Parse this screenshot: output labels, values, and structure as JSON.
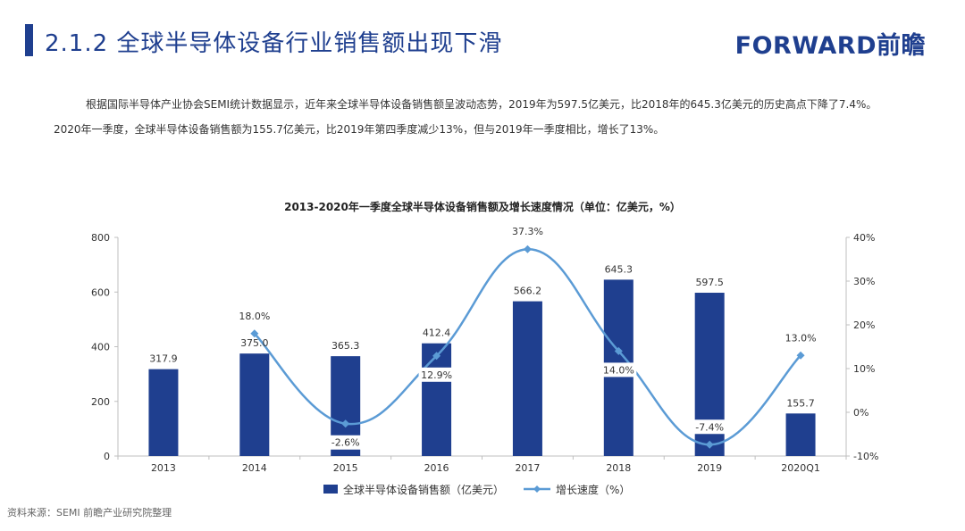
{
  "header": {
    "title": "2.1.2  全球半导体设备行业销售额出现下滑",
    "logo": "FORWARD前瞻"
  },
  "intro": "根据国际半导体产业协会SEMI统计数据显示，近年来全球半导体设备销售额呈波动态势，2019年为597.5亿美元，比2018年的645.3亿美元的历史高点下降了7.4%。2020年一季度，全球半导体设备销售额为155.7亿美元，比2019年第四季度减少13%，但与2019年一季度相比，增长了13%。",
  "chart_data": {
    "type": "bar",
    "title": "2013-2020年一季度全球半导体设备销售额及增长速度情况（单位：亿美元，%）",
    "categories": [
      "2013",
      "2014",
      "2015",
      "2016",
      "2017",
      "2018",
      "2019",
      "2020Q1"
    ],
    "series": [
      {
        "name": "全球半导体设备销售额（亿美元）",
        "type": "bar",
        "axis": "left",
        "values": [
          317.9,
          375.0,
          365.3,
          412.4,
          566.2,
          645.3,
          597.5,
          155.7
        ],
        "labels": [
          "317.9",
          "375.0",
          "365.3",
          "412.4",
          "566.2",
          "645.3",
          "597.5",
          "155.7"
        ],
        "color": "#1f3f8f"
      },
      {
        "name": "增长速度（%）",
        "type": "line",
        "axis": "right",
        "values": [
          null,
          18.0,
          -2.6,
          12.9,
          37.3,
          14.0,
          -7.4,
          13.0
        ],
        "labels": [
          "",
          "18.0%",
          "-2.6%",
          "12.9%",
          "37.3%",
          "14.0%",
          "-7.4%",
          "13.0%"
        ],
        "color": "#5b9bd5"
      }
    ],
    "ylim_left": [
      0,
      800
    ],
    "yticks_left": [
      0,
      200,
      400,
      600,
      800
    ],
    "ylim_right": [
      -10,
      40
    ],
    "yticks_right": [
      -10,
      0,
      10,
      20,
      30,
      40
    ],
    "yticks_right_labels": [
      "-10%",
      "0%",
      "10%",
      "20%",
      "30%",
      "40%"
    ],
    "legend_position": "bottom",
    "grid": false
  },
  "source": "资料来源：SEMI 前瞻产业研究院整理"
}
